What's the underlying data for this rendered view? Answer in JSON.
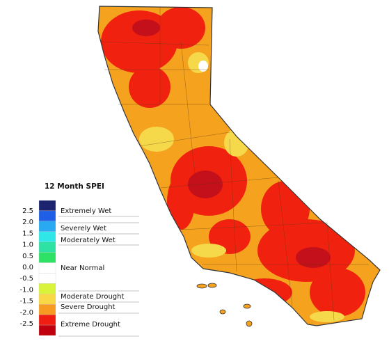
{
  "legend": {
    "title": "12 Month SPEI",
    "ticks": [
      "2.5",
      "2.0",
      "1.5",
      "1.0",
      "0.5",
      "0.0",
      "-0.5",
      "-1.0",
      "-1.5",
      "-2.0",
      "-2.5"
    ],
    "swatches": [
      "#1c2470",
      "#1f5ee6",
      "#29a9f2",
      "#30e6e6",
      "#2ee2a4",
      "#2ee266",
      "#ffffff",
      "#ffffff",
      "#d9f23a",
      "#f8d844",
      "#f79a22",
      "#f01e12",
      "#c0000e"
    ],
    "classes": [
      "Extremely Wet",
      "Severely Wet",
      "Moderately Wet",
      "Near Normal",
      "Moderate Drought",
      "Severe Drought",
      "Extreme Drought"
    ]
  }
}
